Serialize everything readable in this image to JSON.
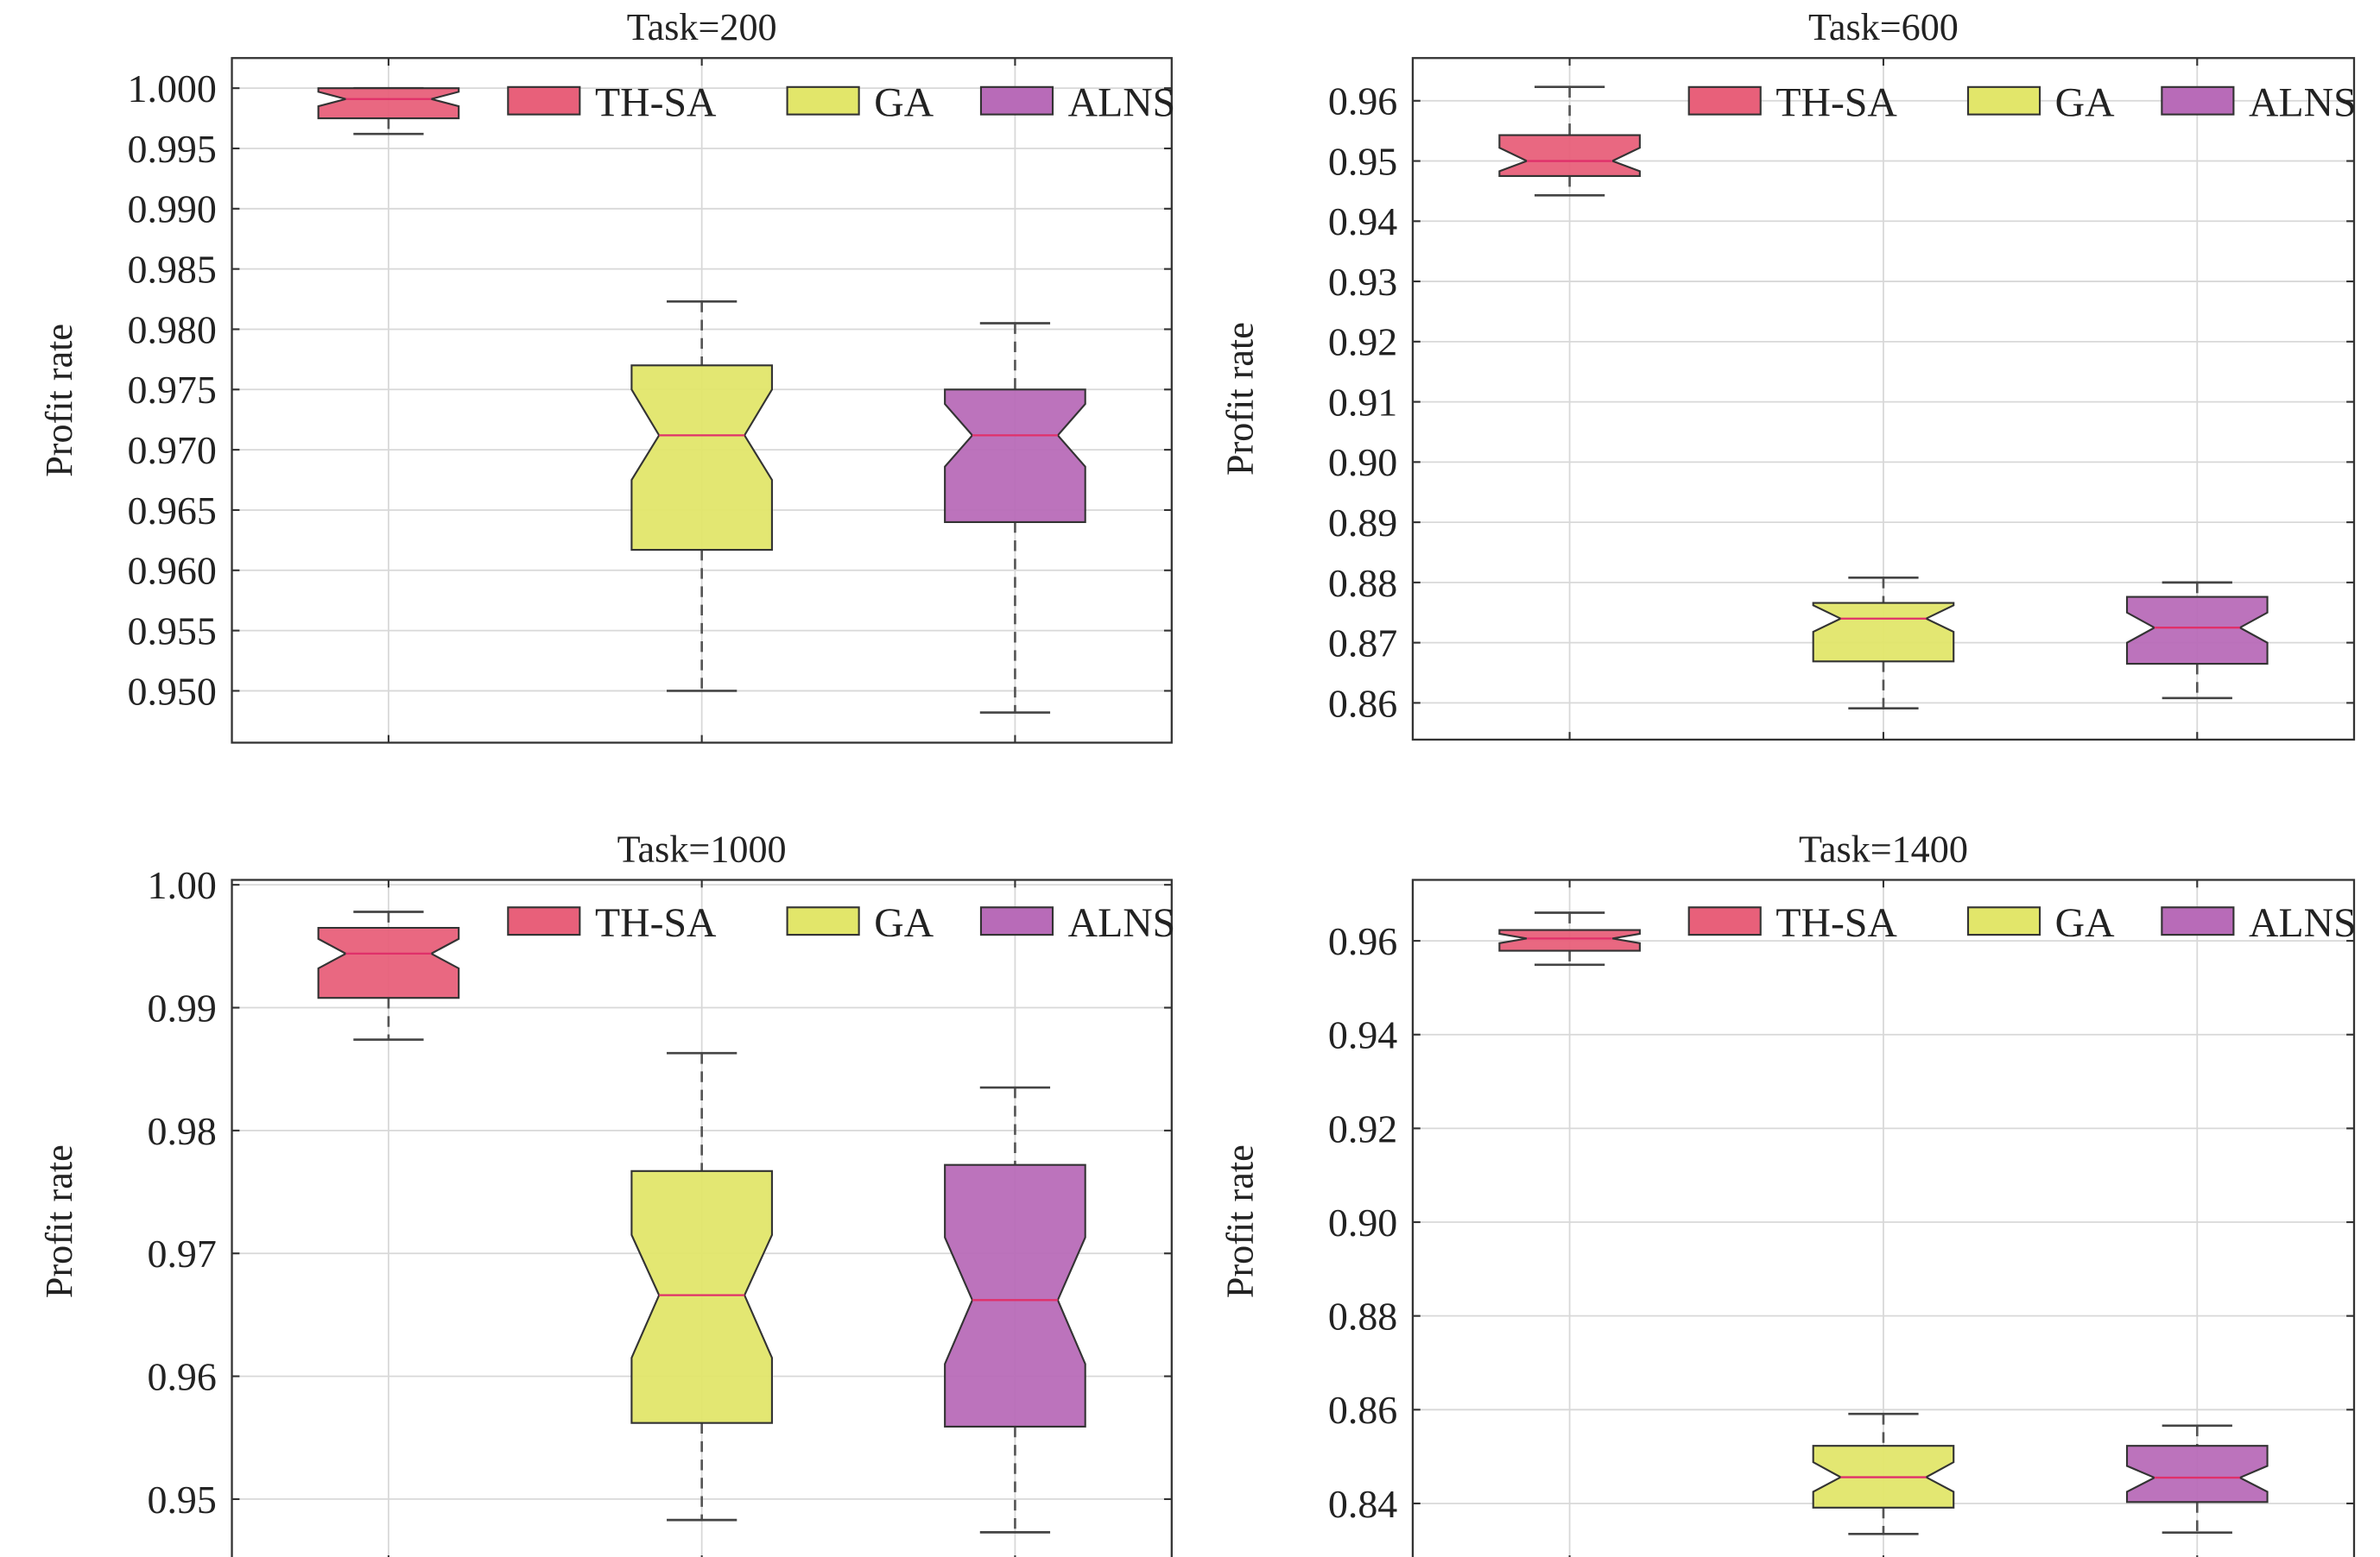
{
  "chart_data": [
    {
      "type": "box",
      "title": "Task=200",
      "ylabel": "Profit rate",
      "xlabel": "",
      "ylim": [
        0.9457,
        1.0025
      ],
      "yticks": [
        0.95,
        0.955,
        0.96,
        0.965,
        0.97,
        0.975,
        0.98,
        0.985,
        0.99,
        0.995,
        1.0
      ],
      "ytick_labels": [
        "0.950",
        "0.955",
        "0.960",
        "0.965",
        "0.970",
        "0.975",
        "0.980",
        "0.985",
        "0.990",
        "0.995",
        "1.000"
      ],
      "grid": true,
      "legend_position": "top-right",
      "series": [
        {
          "name": "TH-SA",
          "whisker_low": 0.9962,
          "q1": 0.9975,
          "median": 0.9991,
          "q3": 1.0,
          "whisker_high": 1.0,
          "notch": [
            0.9985,
            0.9997
          ]
        },
        {
          "name": "GA",
          "whisker_low": 0.95,
          "q1": 0.9617,
          "median": 0.9712,
          "q3": 0.977,
          "whisker_high": 0.9823,
          "notch": [
            0.9675,
            0.975
          ]
        },
        {
          "name": "ALNS",
          "whisker_low": 0.9482,
          "q1": 0.964,
          "median": 0.9712,
          "q3": 0.975,
          "whisker_high": 0.9805,
          "notch": [
            0.9686,
            0.9738
          ]
        }
      ]
    },
    {
      "type": "box",
      "title": "Task=600",
      "ylabel": "Profit rate",
      "xlabel": "",
      "ylim": [
        0.8539,
        0.9671
      ],
      "yticks": [
        0.86,
        0.87,
        0.88,
        0.89,
        0.9,
        0.91,
        0.92,
        0.93,
        0.94,
        0.95,
        0.96
      ],
      "ytick_labels": [
        "0.86",
        "0.87",
        "0.88",
        "0.89",
        "0.90",
        "0.91",
        "0.92",
        "0.93",
        "0.94",
        "0.95",
        "0.96"
      ],
      "grid": true,
      "legend_position": "top-right",
      "series": [
        {
          "name": "TH-SA",
          "whisker_low": 0.9443,
          "q1": 0.9475,
          "median": 0.95,
          "q3": 0.9543,
          "whisker_high": 0.9623,
          "notch": [
            0.9483,
            0.9522
          ]
        },
        {
          "name": "GA",
          "whisker_low": 0.8591,
          "q1": 0.8669,
          "median": 0.874,
          "q3": 0.8766,
          "whisker_high": 0.8808,
          "notch": [
            0.8718,
            0.8762
          ]
        },
        {
          "name": "ALNS",
          "whisker_low": 0.8608,
          "q1": 0.8665,
          "median": 0.8725,
          "q3": 0.8776,
          "whisker_high": 0.88,
          "notch": [
            0.87,
            0.875
          ]
        }
      ]
    },
    {
      "type": "box",
      "title": "Task=1000",
      "ylabel": "Profit rate",
      "xlabel": "",
      "ylim": [
        0.9448,
        1.0004
      ],
      "yticks": [
        0.95,
        0.96,
        0.97,
        0.98,
        0.99,
        1.0
      ],
      "ytick_labels": [
        "0.95",
        "0.96",
        "0.97",
        "0.98",
        "0.99",
        "1.00"
      ],
      "grid": true,
      "legend_position": "top-right",
      "series": [
        {
          "name": "TH-SA",
          "whisker_low": 0.9874,
          "q1": 0.9908,
          "median": 0.9944,
          "q3": 0.9965,
          "whisker_high": 0.9978,
          "notch": [
            0.9932,
            0.9956
          ]
        },
        {
          "name": "GA",
          "whisker_low": 0.9483,
          "q1": 0.9562,
          "median": 0.9666,
          "q3": 0.9767,
          "whisker_high": 0.9863,
          "notch": [
            0.9615,
            0.9715
          ]
        },
        {
          "name": "ALNS",
          "whisker_low": 0.9473,
          "q1": 0.9559,
          "median": 0.9662,
          "q3": 0.9772,
          "whisker_high": 0.9835,
          "notch": [
            0.961,
            0.9713
          ]
        }
      ]
    },
    {
      "type": "box",
      "title": "Task=1400",
      "ylabel": "Profit rate",
      "xlabel": "",
      "ylim": [
        0.8273,
        0.973
      ],
      "yticks": [
        0.84,
        0.86,
        0.88,
        0.9,
        0.92,
        0.94,
        0.96
      ],
      "ytick_labels": [
        "0.84",
        "0.86",
        "0.88",
        "0.90",
        "0.92",
        "0.94",
        "0.96"
      ],
      "grid": true,
      "legend_position": "top-right",
      "series": [
        {
          "name": "TH-SA",
          "whisker_low": 0.9549,
          "q1": 0.9579,
          "median": 0.9605,
          "q3": 0.9623,
          "whisker_high": 0.966,
          "notch": [
            0.9595,
            0.9615
          ]
        },
        {
          "name": "GA",
          "whisker_low": 0.8335,
          "q1": 0.8391,
          "median": 0.8456,
          "q3": 0.8523,
          "whisker_high": 0.8591,
          "notch": [
            0.8425,
            0.8488
          ]
        },
        {
          "name": "ALNS",
          "whisker_low": 0.8338,
          "q1": 0.8403,
          "median": 0.8455,
          "q3": 0.8523,
          "whisker_high": 0.8566,
          "notch": [
            0.8425,
            0.848
          ]
        }
      ]
    }
  ],
  "colors": {
    "TH-SA": "#e8607a",
    "GA": "#e2e66a",
    "ALNS": "#b86bb8",
    "median": "#e0306a",
    "axis": "#333333",
    "grid": "#d8d8d8"
  }
}
